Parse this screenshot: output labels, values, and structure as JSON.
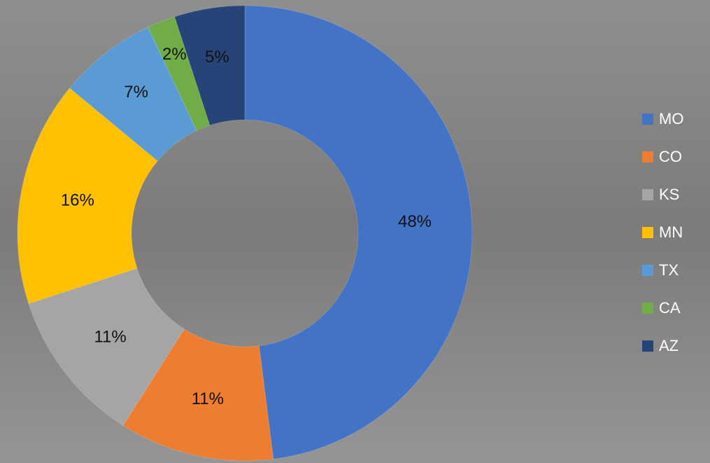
{
  "chart_data": {
    "type": "donut",
    "categories": [
      "MO",
      "CO",
      "KS",
      "MN",
      "TX",
      "CA",
      "AZ"
    ],
    "values": [
      48,
      11,
      11,
      16,
      7,
      2,
      5
    ],
    "value_labels": [
      "48%",
      "11%",
      "11%",
      "16%",
      "7%",
      "2%",
      "5%"
    ],
    "colors": [
      "#4472c4",
      "#ed7d31",
      "#a5a5a5",
      "#ffc000",
      "#5b9bd5",
      "#70ad47",
      "#264478"
    ],
    "legend": "right"
  }
}
